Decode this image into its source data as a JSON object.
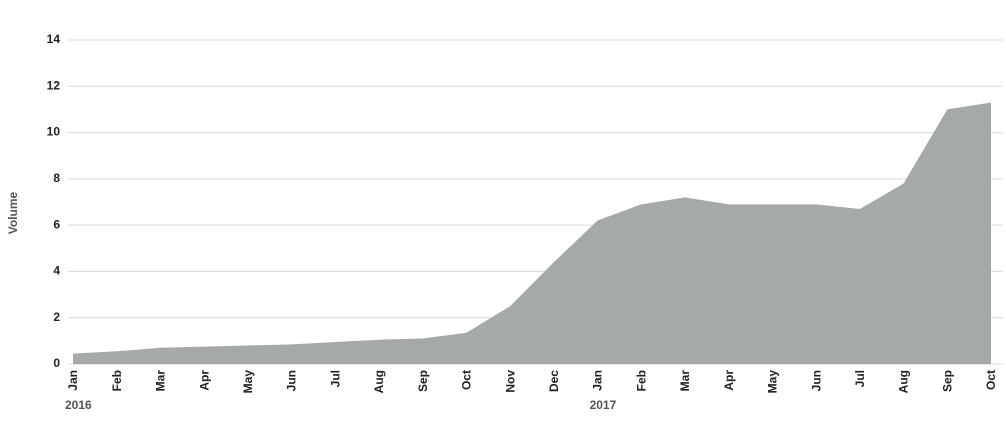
{
  "chart_data": {
    "type": "area",
    "y_label": "Volume",
    "categories": [
      "Jan",
      "Feb",
      "Mar",
      "Apr",
      "May",
      "Jun",
      "Jul",
      "Aug",
      "Sep",
      "Oct",
      "Nov",
      "Dec",
      "Jan",
      "Feb",
      "Mar",
      "Apr",
      "May",
      "Jun",
      "Jul",
      "Aug",
      "Sep",
      "Oct"
    ],
    "year_labels": [
      "2016",
      null,
      null,
      null,
      null,
      null,
      null,
      null,
      null,
      null,
      null,
      null,
      "2017",
      null,
      null,
      null,
      null,
      null,
      null,
      null,
      null,
      null
    ],
    "values": [
      0.45,
      0.55,
      0.7,
      0.75,
      0.8,
      0.85,
      0.95,
      1.05,
      1.1,
      1.35,
      2.5,
      4.4,
      6.2,
      6.9,
      7.2,
      6.9,
      6.9,
      6.9,
      6.7,
      7.8,
      11.0,
      11.3
    ],
    "color": "#a6a9aa",
    "ylim": [
      0,
      14
    ],
    "yticks": [
      0,
      2,
      4,
      6,
      8,
      10,
      12,
      14
    ],
    "grid": true
  }
}
